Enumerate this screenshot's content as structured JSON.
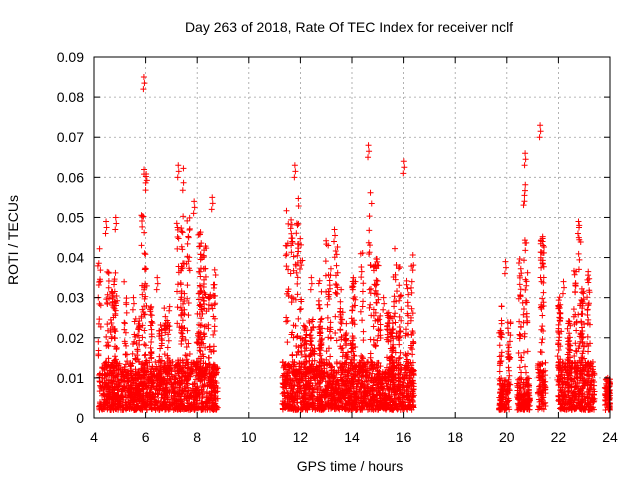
{
  "chart_data": {
    "type": "scatter",
    "title": "Day 263 of 2018, Rate Of TEC Index for receiver nclf",
    "xlabel": "GPS time / hours",
    "ylabel": "ROTI / TECUs",
    "xlim": [
      4,
      24
    ],
    "ylim": [
      0,
      0.09
    ],
    "xticks": [
      "4",
      "6",
      "8",
      "10",
      "12",
      "14",
      "16",
      "18",
      "20",
      "22",
      "24"
    ],
    "yticks": [
      "0",
      "0.01",
      "0.02",
      "0.03",
      "0.04",
      "0.05",
      "0.06",
      "0.07",
      "0.08",
      "0.09"
    ],
    "grid": true,
    "marker": "+",
    "color": "#ff0000",
    "series": [
      {
        "name": "ROTI",
        "clusters": [
          {
            "x": [
              4.2,
              4.6
            ],
            "upper": 0.049,
            "dense": 0.012
          },
          {
            "x": [
              4.6,
              5.3
            ],
            "upper": 0.05,
            "dense": 0.012
          },
          {
            "x": [
              5.3,
              5.8
            ],
            "upper": 0.03,
            "dense": 0.01
          },
          {
            "x": [
              5.8,
              6.2
            ],
            "upper": 0.085,
            "dense": 0.012
          },
          {
            "x": [
              6.2,
              6.9
            ],
            "upper": 0.035,
            "dense": 0.012
          },
          {
            "x": [
              6.9,
              7.6
            ],
            "upper": 0.063,
            "dense": 0.012
          },
          {
            "x": [
              7.6,
              8.2
            ],
            "upper": 0.054,
            "dense": 0.012
          },
          {
            "x": [
              8.2,
              8.8
            ],
            "upper": 0.055,
            "dense": 0.012
          },
          {
            "x": [
              11.3,
              12.1
            ],
            "upper": 0.063,
            "dense": 0.012
          },
          {
            "x": [
              12.1,
              12.9
            ],
            "upper": 0.035,
            "dense": 0.012
          },
          {
            "x": [
              12.9,
              13.6
            ],
            "upper": 0.047,
            "dense": 0.012
          },
          {
            "x": [
              13.6,
              14.3
            ],
            "upper": 0.035,
            "dense": 0.012
          },
          {
            "x": [
              14.3,
              15.0
            ],
            "upper": 0.068,
            "dense": 0.012
          },
          {
            "x": [
              15.0,
              15.6
            ],
            "upper": 0.03,
            "dense": 0.01
          },
          {
            "x": [
              15.6,
              16.4
            ],
            "upper": 0.064,
            "dense": 0.012
          },
          {
            "x": [
              19.7,
              20.1
            ],
            "upper": 0.039,
            "dense": 0.008
          },
          {
            "x": [
              20.4,
              20.9
            ],
            "upper": 0.066,
            "dense": 0.008
          },
          {
            "x": [
              21.2,
              21.5
            ],
            "upper": 0.073,
            "dense": 0.012
          },
          {
            "x": [
              22.0,
              22.5
            ],
            "upper": 0.034,
            "dense": 0.012
          },
          {
            "x": [
              22.5,
              23.4
            ],
            "upper": 0.049,
            "dense": 0.012
          },
          {
            "x": [
              23.8,
              24.0
            ],
            "upper": 0.01,
            "dense": 0.008
          }
        ]
      }
    ]
  }
}
